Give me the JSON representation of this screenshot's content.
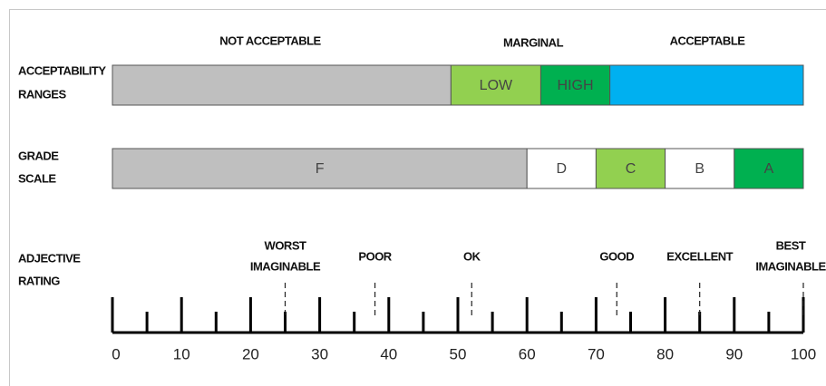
{
  "scale": {
    "min": 0,
    "max": 100,
    "major_ticks": [
      0,
      10,
      20,
      30,
      40,
      50,
      60,
      70,
      80,
      90,
      100
    ],
    "minor_ticks": [
      5,
      15,
      25,
      35,
      45,
      55,
      65,
      75,
      85,
      95
    ]
  },
  "acceptability": {
    "label": [
      "ACCEPTABILITY",
      "RANGES"
    ],
    "headers": [
      "NOT ACCEPTABLE",
      "MARGINAL",
      "ACCEPTABLE"
    ],
    "segments": [
      {
        "from": 0,
        "to": 49,
        "color": "#bfbfbf"
      },
      {
        "label": "LOW",
        "from": 49,
        "to": 62,
        "color": "#92d050"
      },
      {
        "label": "HIGH",
        "from": 62,
        "to": 72,
        "color": "#00b050"
      },
      {
        "from": 72,
        "to": 100,
        "color": "#00b0f0"
      }
    ]
  },
  "grades": {
    "label": [
      "GRADE",
      "SCALE"
    ],
    "segments": [
      {
        "label": "F",
        "from": 0,
        "to": 60,
        "color": "#bfbfbf"
      },
      {
        "label": "D",
        "from": 60,
        "to": 70,
        "color": "#ffffff"
      },
      {
        "label": "C",
        "from": 70,
        "to": 80,
        "color": "#92d050"
      },
      {
        "label": "B",
        "from": 80,
        "to": 90,
        "color": "#ffffff"
      },
      {
        "label": "A",
        "from": 90,
        "to": 100,
        "color": "#00b050"
      }
    ]
  },
  "adjectives": {
    "label": [
      "ADJECTIVE",
      "RATING"
    ],
    "markers": [
      {
        "lines": [
          "WORST",
          "IMAGINABLE"
        ],
        "value": 25
      },
      {
        "lines": [
          "POOR"
        ],
        "value": 38
      },
      {
        "lines": [
          "OK"
        ],
        "value": 52
      },
      {
        "lines": [
          "GOOD"
        ],
        "value": 73
      },
      {
        "lines": [
          "EXCELLENT"
        ],
        "value": 85
      },
      {
        "lines": [
          "BEST",
          "IMAGINABLE"
        ],
        "value": 100
      }
    ]
  }
}
